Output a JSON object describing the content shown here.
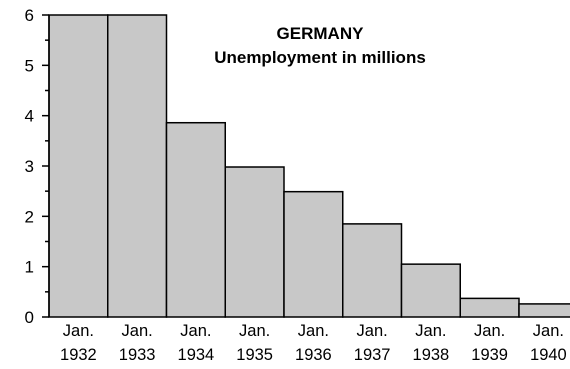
{
  "chart_data": {
    "type": "bar",
    "title": "GERMANY",
    "subtitle": "Unemployment in millions",
    "categories": [
      {
        "line1": "Jan.",
        "line2": "1932"
      },
      {
        "line1": "Jan.",
        "line2": "1933"
      },
      {
        "line1": "Jan.",
        "line2": "1934"
      },
      {
        "line1": "Jan.",
        "line2": "1935"
      },
      {
        "line1": "Jan.",
        "line2": "1936"
      },
      {
        "line1": "Jan.",
        "line2": "1937"
      },
      {
        "line1": "Jan.",
        "line2": "1938"
      },
      {
        "line1": "Jan.",
        "line2": "1939"
      },
      {
        "line1": "Jan.",
        "line2": "1940"
      }
    ],
    "values": [
      6.0,
      6.0,
      3.86,
      2.98,
      2.49,
      1.85,
      1.05,
      0.37,
      0.26
    ],
    "ylim": [
      0,
      6
    ],
    "yticks": [
      "0",
      "1",
      "2",
      "3",
      "4",
      "5",
      "6"
    ],
    "xlabel": "",
    "ylabel": "",
    "grid": false,
    "colors": {
      "bar_fill": "#c8c8c8",
      "bar_stroke": "#000000",
      "axis": "#000000"
    }
  }
}
